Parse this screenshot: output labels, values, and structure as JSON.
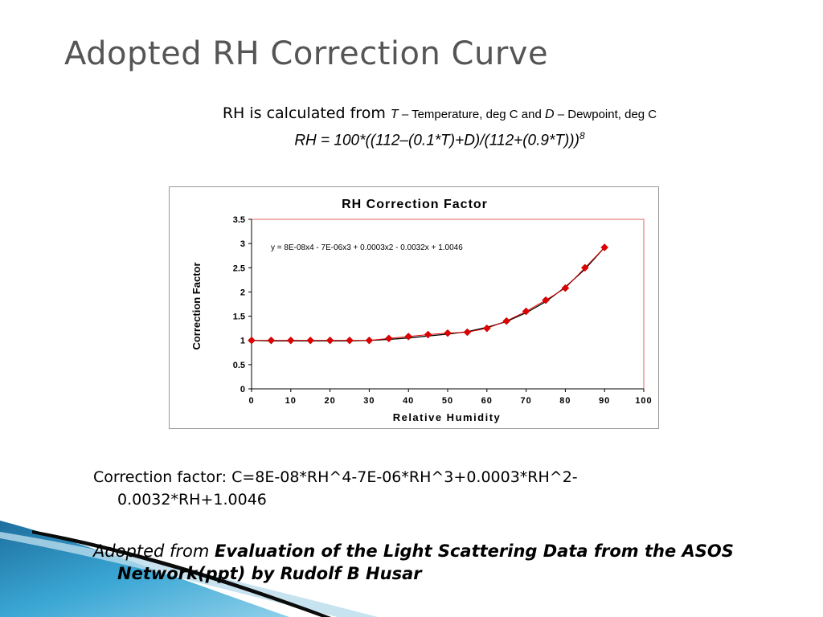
{
  "slide": {
    "title": "Adopted RH Correction Curve",
    "intro_prefix": "RH is calculated from ",
    "intro_T": "T",
    "intro_T_desc": " – Temperature, deg C and ",
    "intro_D": "D",
    "intro_D_desc": " – Dewpoint, deg C",
    "formula": "RH = 100*((112–(0.1*T)+D)/(112+(0.9*T)))",
    "formula_exp": "8",
    "correction_line1": "Correction factor: C=8E-08*RH^4-7E-06*RH^3+0.0003*RH^2-",
    "correction_line2": "0.0032*RH+1.0046",
    "adopted_prefix": "Adopted from ",
    "adopted_source_line1": "Evaluation of the Light Scattering Data from the ASOS",
    "adopted_source_line2": "Network(ppt)  by Rudolf B Husar"
  },
  "colors": {
    "title": "#555555",
    "marker": "#e00000",
    "plot_border": "#e06060",
    "trendline": "#000000",
    "deco_blue": "#2a8fc0"
  },
  "chart_data": {
    "type": "scatter",
    "title": "RH Correction Factor",
    "xlabel": "Relative Humidity",
    "ylabel": "Correction Factor",
    "xlim": [
      0,
      100
    ],
    "ylim": [
      0,
      3.5
    ],
    "xticks": [
      "0",
      "10",
      "20",
      "30",
      "40",
      "50",
      "60",
      "70",
      "80",
      "90",
      "100"
    ],
    "yticks": [
      "0",
      "0.5",
      "1",
      "1.5",
      "2",
      "2.5",
      "3",
      "3.5"
    ],
    "grid": false,
    "trendline_equation": "y = 8E-08x4 - 7E-06x3 + 0.0003x2 - 0.0032x + 1.0046",
    "series": [
      {
        "x": [
          0,
          5,
          10,
          15,
          20,
          25,
          30,
          35,
          40,
          45,
          50,
          55,
          60,
          65,
          70,
          75,
          80,
          85,
          90
        ],
        "y": [
          1.0,
          1.0,
          1.0,
          1.0,
          1.0,
          1.0,
          1.0,
          1.04,
          1.08,
          1.12,
          1.15,
          1.17,
          1.25,
          1.4,
          1.6,
          1.83,
          2.08,
          2.5,
          2.92
        ]
      }
    ],
    "trendline": {
      "x": [
        0,
        5,
        10,
        15,
        20,
        25,
        30,
        35,
        40,
        45,
        50,
        55,
        60,
        65,
        70,
        75,
        80,
        85,
        90
      ],
      "y": [
        1.0,
        0.99,
        0.99,
        0.99,
        0.99,
        0.99,
        1.0,
        1.02,
        1.05,
        1.09,
        1.13,
        1.18,
        1.27,
        1.39,
        1.57,
        1.8,
        2.1,
        2.47,
        2.92
      ]
    }
  }
}
